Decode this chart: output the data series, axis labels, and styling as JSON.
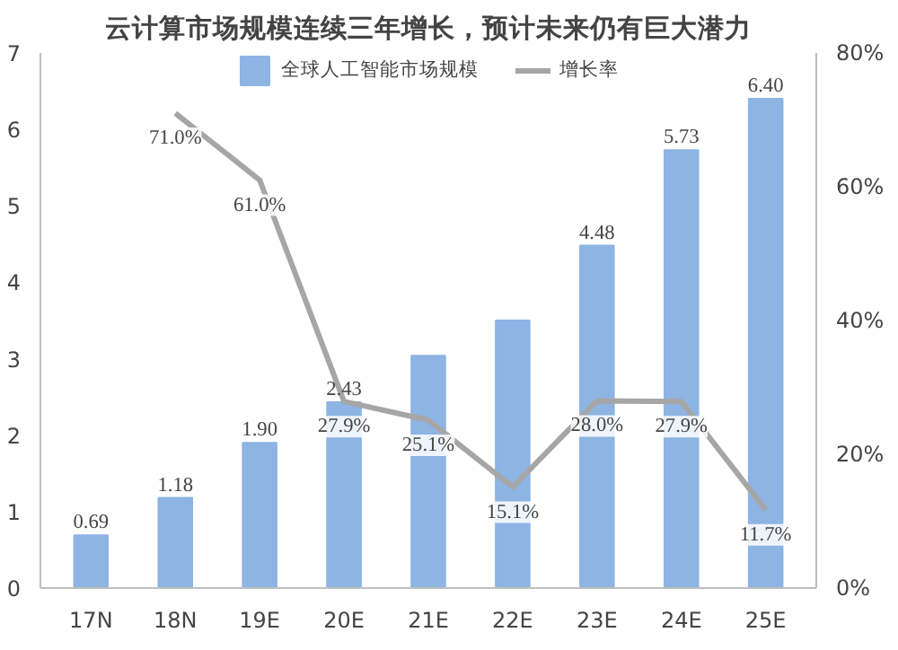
{
  "chart_data": {
    "type": "bar",
    "title": "云计算市场规模连续三年增长，预计未来仍有巨大潜力",
    "categories": [
      "17N",
      "18N",
      "19E",
      "20E",
      "21E",
      "22E",
      "23E",
      "24E",
      "25E"
    ],
    "series": [
      {
        "name": "全球人工智能市场规模",
        "color": "#8db4e2",
        "values": [
          0.69,
          1.18,
          1.9,
          2.43,
          3.04,
          3.5,
          4.48,
          5.73,
          6.4
        ],
        "value_labels": [
          "0.69",
          "1.18",
          "1.90",
          "2.43",
          null,
          null,
          "4.48",
          "5.73",
          "6.40"
        ]
      },
      {
        "name": "增长率",
        "type": "line",
        "axis": "y2",
        "color": "#a6a6a6",
        "values": [
          null,
          71.0,
          61.0,
          27.9,
          25.1,
          15.1,
          28.0,
          27.9,
          11.7
        ],
        "value_labels": [
          null,
          "71.0%",
          "61.0%",
          "27.9%",
          "25.1%",
          "15.1%",
          "28.0%",
          "27.9%",
          "11.7%"
        ]
      }
    ],
    "ylim": [
      0,
      7
    ],
    "yticks": [
      0,
      1,
      2,
      3,
      4,
      5,
      6,
      7
    ],
    "y2lim": [
      0,
      80
    ],
    "y2ticks": [
      {
        "value": 0,
        "label": "0%"
      },
      {
        "value": 20,
        "label": "20%"
      },
      {
        "value": 40,
        "label": "40%"
      },
      {
        "value": 60,
        "label": "60%"
      },
      {
        "value": 80,
        "label": "80%"
      }
    ],
    "legend": "top",
    "grid": false,
    "marker": "none",
    "line_style": "solid"
  }
}
